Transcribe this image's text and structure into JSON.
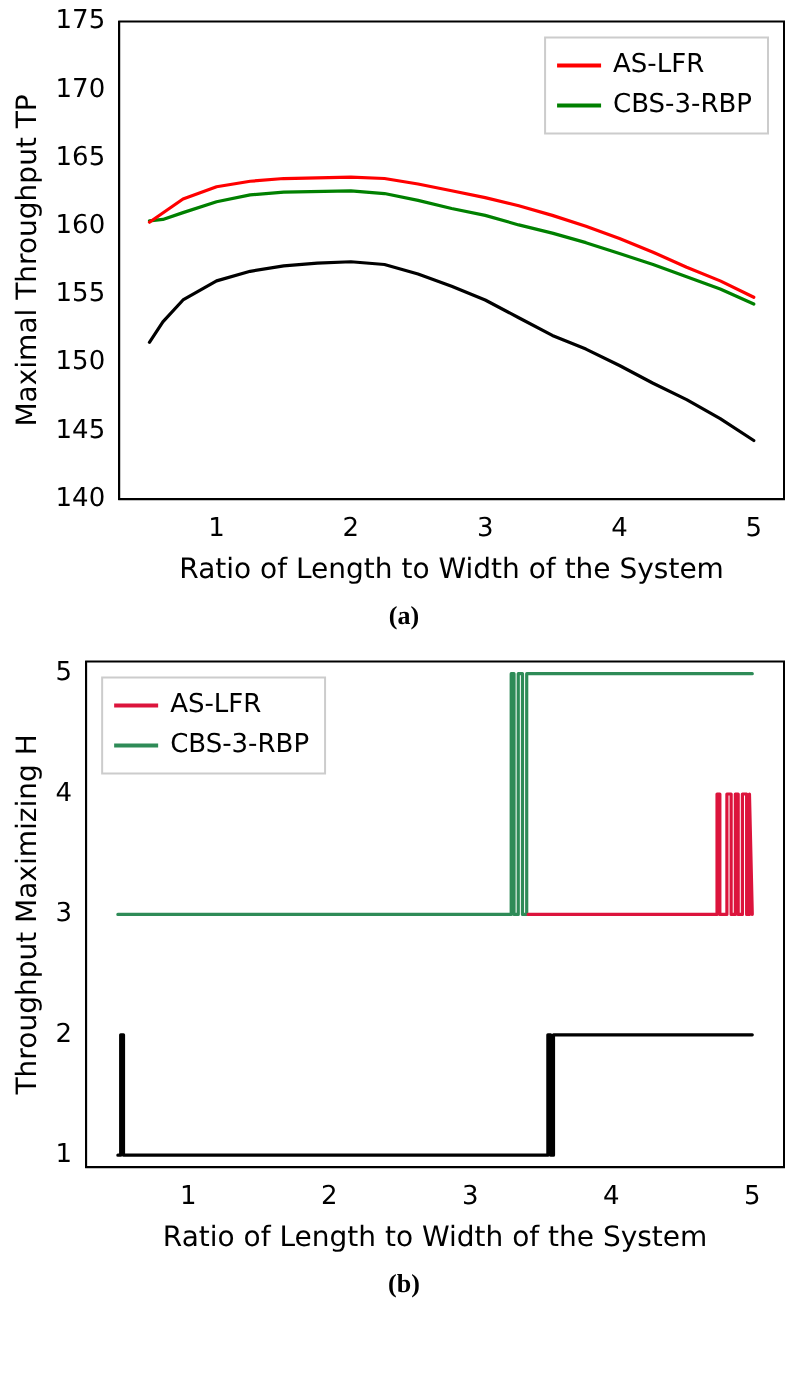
{
  "chart_data": [
    {
      "type": "line",
      "xlabel": "Ratio of Length to Width of the System",
      "ylabel": "Maximal Throughput TP",
      "xlim": [
        0.275,
        5.225
      ],
      "xticks": [
        1,
        2,
        3,
        4,
        5
      ],
      "ylim": [
        140,
        175
      ],
      "yticks": [
        140,
        145,
        150,
        155,
        160,
        165,
        170,
        175
      ],
      "legend": "top right",
      "grid": false,
      "marker": "none",
      "line_style": "solid",
      "annotations": [
        "(a)"
      ],
      "series": [
        {
          "name": "AS-LFR",
          "color": "#ff0000",
          "x": [
            0.5,
            0.75,
            1,
            1.25,
            1.5,
            2,
            2.25,
            2.5,
            2.75,
            3,
            3.25,
            3.5,
            3.75,
            4,
            4.25,
            4.5,
            4.75,
            5
          ],
          "values": [
            160.3,
            162.0,
            162.9,
            163.3,
            163.5,
            163.6,
            163.5,
            163.1,
            162.6,
            162.1,
            161.5,
            160.8,
            160.0,
            159.1,
            158.1,
            157.0,
            156.0,
            154.8
          ]
        },
        {
          "name": "CBS-3-RBP",
          "color": "#008000",
          "x": [
            0.5,
            0.6,
            0.75,
            1,
            1.25,
            1.5,
            2,
            2.25,
            2.5,
            2.75,
            3,
            3.25,
            3.5,
            3.75,
            4,
            4.25,
            4.5,
            4.75,
            5
          ],
          "values": [
            160.4,
            160.5,
            161.0,
            161.8,
            162.3,
            162.5,
            162.6,
            162.4,
            161.9,
            161.3,
            160.8,
            160.1,
            159.5,
            158.8,
            158.0,
            157.2,
            156.3,
            155.4,
            154.3
          ]
        },
        {
          "color": "#000000",
          "x": [
            0.5,
            0.6,
            0.75,
            1,
            1.25,
            1.5,
            1.75,
            2,
            2.25,
            2.5,
            2.75,
            3,
            3.25,
            3.5,
            3.75,
            4,
            4.25,
            4.5,
            4.75,
            5
          ],
          "values": [
            151.5,
            153.0,
            154.6,
            156.0,
            156.7,
            157.1,
            157.3,
            157.4,
            157.2,
            156.5,
            155.6,
            154.6,
            153.3,
            152.0,
            151.0,
            149.8,
            148.5,
            147.3,
            145.9,
            144.3
          ]
        }
      ]
    },
    {
      "type": "line",
      "xlabel": "Ratio of Length to Width of the System",
      "ylabel": "Throughput Maximizing H",
      "xlim": [
        0.275,
        5.225
      ],
      "xticks": [
        1,
        2,
        3,
        4,
        5
      ],
      "ylim": [
        0.9,
        5.1
      ],
      "yticks": [
        1,
        2,
        3,
        4,
        5
      ],
      "legend": "top left",
      "grid": false,
      "marker": "none",
      "line_style": "solid",
      "annotations": [
        "(b)"
      ],
      "series": [
        {
          "name": "AS-LFR",
          "color": "#dc143c",
          "x": [
            3.41,
            4.75,
            4.75,
            4.77,
            4.77,
            4.82,
            4.82,
            4.85,
            4.85,
            4.88,
            4.88,
            4.9,
            4.9,
            4.93,
            4.93,
            4.96,
            4.96,
            4.98,
            4.98,
            5
          ],
          "values": [
            3,
            3,
            4,
            4,
            3,
            3,
            4,
            4,
            3,
            3,
            4,
            4,
            3,
            3,
            4,
            4,
            3,
            3,
            4,
            3
          ]
        },
        {
          "name": "CBS-3-RBP",
          "color": "#2e8b57",
          "x": [
            0.5,
            3.29,
            3.29,
            3.31,
            3.31,
            3.34,
            3.34,
            3.37,
            3.37,
            3.4,
            3.4,
            5
          ],
          "values": [
            3,
            3,
            5,
            5,
            3,
            3,
            5,
            5,
            3,
            3,
            5,
            5
          ]
        },
        {
          "color": "#000000",
          "x": [
            0.5,
            0.52,
            0.52,
            0.54,
            0.54,
            3.55,
            3.55,
            3.57,
            3.57,
            3.59,
            3.59,
            3.61,
            3.61,
            5
          ],
          "values": [
            1,
            1,
            2,
            2,
            1,
            1,
            2,
            2,
            1,
            1,
            2,
            2,
            2,
            2
          ]
        }
      ]
    }
  ]
}
